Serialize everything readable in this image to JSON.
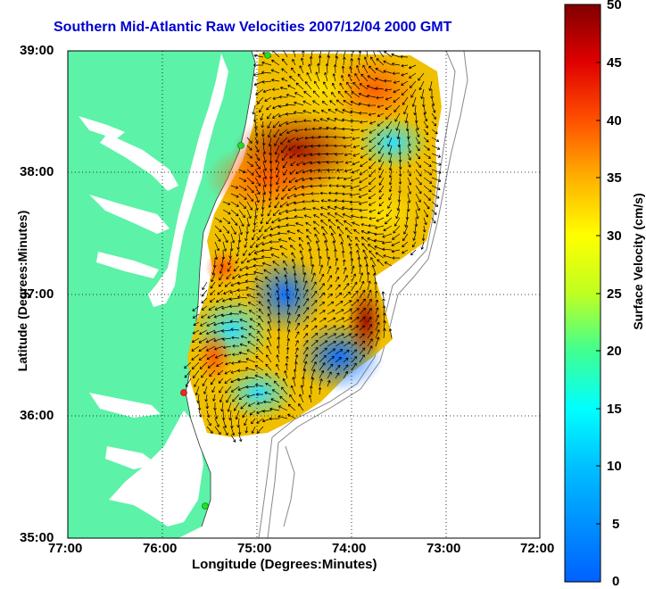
{
  "title": "Southern Mid-Atlantic Raw Velocities 2007/12/04 2000 GMT",
  "x_axis": {
    "label": "Longitude (Degrees:Minutes)",
    "ticks": [
      "77:00",
      "76:00",
      "75:00",
      "74:00",
      "73:00",
      "72:00"
    ]
  },
  "y_axis": {
    "label": "Latitude (Degrees:Minutes)",
    "ticks": [
      "39:00",
      "38:00",
      "37:00",
      "36:00",
      "35:00"
    ]
  },
  "colorbar": {
    "label": "Surface Velocity (cm/s)",
    "ticks": [
      "50",
      "45",
      "40",
      "35",
      "30",
      "25",
      "20",
      "15",
      "10",
      "5",
      "0"
    ],
    "min": 0,
    "max": 50
  },
  "map": {
    "lon_range": [
      -77,
      -72
    ],
    "lat_range": [
      35,
      39
    ],
    "grid": true,
    "land_color": "#5cf2a8",
    "colormap": "jet"
  }
}
